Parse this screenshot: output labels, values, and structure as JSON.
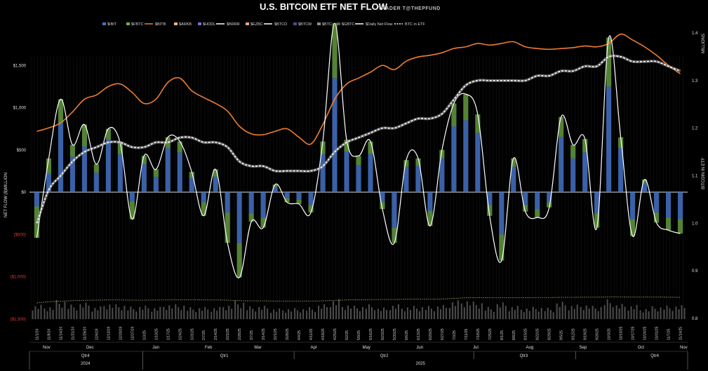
{
  "chart_data": {
    "type": "bar",
    "title": "U.S. BITCOIN ETF NET FLOW",
    "subtitle": "TRADER T@THEPFUND",
    "ylabel": "NET FLOW ($)MILLION",
    "y2label_top": "MILLIONS",
    "y2label": "BITCOIN IN ETF",
    "ylim": [
      -1500,
      2000
    ],
    "y2lim": [
      0.8,
      1.4
    ],
    "yticks": [
      {
        "value": 1500,
        "label": "$1,500",
        "neg": false
      },
      {
        "value": 1000,
        "label": "$1,000",
        "neg": false
      },
      {
        "value": 500,
        "label": "$500",
        "neg": false
      },
      {
        "value": 0,
        "label": "$0",
        "neg": false
      },
      {
        "value": -500,
        "label": "($500)",
        "neg": true
      },
      {
        "value": -1000,
        "label": "($1,000)",
        "neg": true
      },
      {
        "value": -1500,
        "label": "($1,500)",
        "neg": true
      }
    ],
    "y2ticks": [
      "1.4",
      "1.3",
      "1.2",
      "1.1",
      "1.0",
      "0.9",
      "0.8"
    ],
    "legend": [
      {
        "name": "$IBIT",
        "color": "#4472c4",
        "kind": "box"
      },
      {
        "name": "$FBTC",
        "color": "#70ad47",
        "kind": "box"
      },
      {
        "name": "$BITB",
        "color": "#ed7d31",
        "kind": "line"
      },
      {
        "name": "$ARKB",
        "color": "#f4b183",
        "kind": "box"
      },
      {
        "name": "$HODL",
        "color": "#7e6bc9",
        "kind": "box"
      },
      {
        "name": "$BRRR",
        "color": "#ffffff",
        "kind": "line"
      },
      {
        "name": "$EZBC",
        "color": "#e6a19a",
        "kind": "box"
      },
      {
        "name": "$BTCO",
        "color": "#ffffff",
        "kind": "line"
      },
      {
        "name": "$BTCW",
        "color": "#5b4a8a",
        "kind": "box"
      },
      {
        "name": "$BTC",
        "color": "#8c8c8c",
        "kind": "box"
      },
      {
        "name": "$GBTC",
        "color": "#595959",
        "kind": "box"
      },
      {
        "name": "$Daily Net Flow",
        "color": "#ffffff",
        "kind": "line"
      },
      {
        "name": "BTC in ETF",
        "color": "#ffffff",
        "kind": "dash"
      }
    ],
    "x": [
      "11/1/24",
      "11/8/24",
      "11/14/24",
      "11/21/24",
      "11/29/24",
      "12/6/24",
      "12/13/24",
      "12/20/24",
      "12/27/24",
      "1/3/25",
      "1/10/25",
      "1/17/25",
      "1/24/25",
      "1/31/25",
      "2/7/25",
      "2/14/25",
      "2/21/25",
      "2/28/25",
      "3/7/25",
      "3/14/25",
      "3/21/25",
      "3/28/25",
      "4/4/25",
      "4/11/25",
      "4/18/25",
      "4/25/25",
      "5/2/25",
      "5/9/25",
      "5/16/25",
      "5/23/25",
      "5/30/25",
      "6/6/25",
      "6/13/25",
      "6/20/25",
      "6/27/25",
      "7/3/25",
      "7/11/25",
      "7/18/25",
      "7/25/25",
      "8/1/25",
      "8/8/25",
      "8/15/25",
      "8/22/25",
      "8/29/25",
      "9/5/25",
      "9/12/25",
      "9/19/25",
      "9/26/25",
      "10/3/25",
      "10/10/25",
      "10/17/25",
      "10/24/25",
      "10/31/25",
      "11/7/25",
      "11/14/25"
    ],
    "series": [
      {
        "name": "$Daily Net Flow",
        "values": [
          -540,
          400,
          1100,
          560,
          800,
          330,
          750,
          580,
          -320,
          430,
          270,
          650,
          600,
          240,
          -280,
          270,
          -600,
          -1010,
          -350,
          -420,
          90,
          -120,
          -140,
          -240,
          600,
          2000,
          620,
          430,
          600,
          -200,
          -600,
          380,
          400,
          -400,
          500,
          1050,
          1160,
          920,
          -280,
          -810,
          400,
          -230,
          -300,
          -180,
          890,
          560,
          630,
          -420,
          1830,
          650,
          -520,
          150,
          -360,
          -450,
          -490
        ]
      },
      {
        "name": "$IBIT",
        "values": [
          -170,
          220,
          820,
          420,
          540,
          230,
          620,
          450,
          -110,
          330,
          180,
          520,
          470,
          170,
          -120,
          180,
          -240,
          -600,
          -250,
          -300,
          60,
          -70,
          -90,
          -150,
          450,
          1350,
          480,
          320,
          450,
          -120,
          -420,
          300,
          310,
          -220,
          400,
          780,
          850,
          700,
          -150,
          -500,
          300,
          -150,
          -200,
          -120,
          650,
          400,
          470,
          -250,
          1250,
          520,
          -320,
          110,
          -240,
          -300,
          -320
        ]
      },
      {
        "name": "BTC in ETF",
        "values": [
          1.0,
          1.07,
          1.1,
          1.13,
          1.15,
          1.16,
          1.17,
          1.17,
          1.16,
          1.16,
          1.17,
          1.17,
          1.18,
          1.18,
          1.17,
          1.17,
          1.16,
          1.13,
          1.12,
          1.12,
          1.11,
          1.11,
          1.11,
          1.11,
          1.12,
          1.15,
          1.17,
          1.18,
          1.19,
          1.2,
          1.2,
          1.21,
          1.22,
          1.22,
          1.23,
          1.26,
          1.29,
          1.3,
          1.3,
          1.3,
          1.3,
          1.3,
          1.31,
          1.31,
          1.32,
          1.32,
          1.33,
          1.33,
          1.35,
          1.35,
          1.34,
          1.34,
          1.34,
          1.33,
          1.32
        ]
      },
      {
        "name": "$BITB",
        "values": [
          720,
          760,
          820,
          950,
          1100,
          1150,
          1250,
          1280,
          1180,
          1050,
          1100,
          1300,
          1350,
          1200,
          1120,
          1050,
          960,
          780,
          690,
          680,
          720,
          750,
          650,
          570,
          800,
          1100,
          1280,
          1350,
          1420,
          1500,
          1450,
          1550,
          1600,
          1620,
          1650,
          1700,
          1720,
          1760,
          1740,
          1760,
          1780,
          1720,
          1700,
          1690,
          1700,
          1710,
          1730,
          1720,
          1760,
          1870,
          1800,
          1720,
          1620,
          1500,
          1400
        ]
      }
    ],
    "months": [
      {
        "label": "Nov",
        "pos": 0.026
      },
      {
        "label": "Dec",
        "pos": 0.092
      },
      {
        "label": "Jan",
        "pos": 0.192
      },
      {
        "label": "Feb",
        "pos": 0.272
      },
      {
        "label": "Mar",
        "pos": 0.347
      },
      {
        "label": "Apr",
        "pos": 0.432
      },
      {
        "label": "May",
        "pos": 0.512
      },
      {
        "label": "Jun",
        "pos": 0.593
      },
      {
        "label": "Jul",
        "pos": 0.678
      },
      {
        "label": "Aug",
        "pos": 0.76
      },
      {
        "label": "Sep",
        "pos": 0.841
      },
      {
        "label": "Oct",
        "pos": 0.929
      },
      {
        "label": "Nov",
        "pos": 0.994
      }
    ],
    "quarters": [
      {
        "label": "Qtr4",
        "pos": 0.085
      },
      {
        "label": "Qtr1",
        "pos": 0.296
      },
      {
        "label": "Qtr2",
        "pos": 0.539
      },
      {
        "label": "Qtr3",
        "pos": 0.751
      },
      {
        "label": "Qtr4",
        "pos": 0.95
      }
    ],
    "years": [
      {
        "label": "2024",
        "pos": 0.085
      },
      {
        "label": "2025",
        "pos": 0.594
      }
    ]
  }
}
